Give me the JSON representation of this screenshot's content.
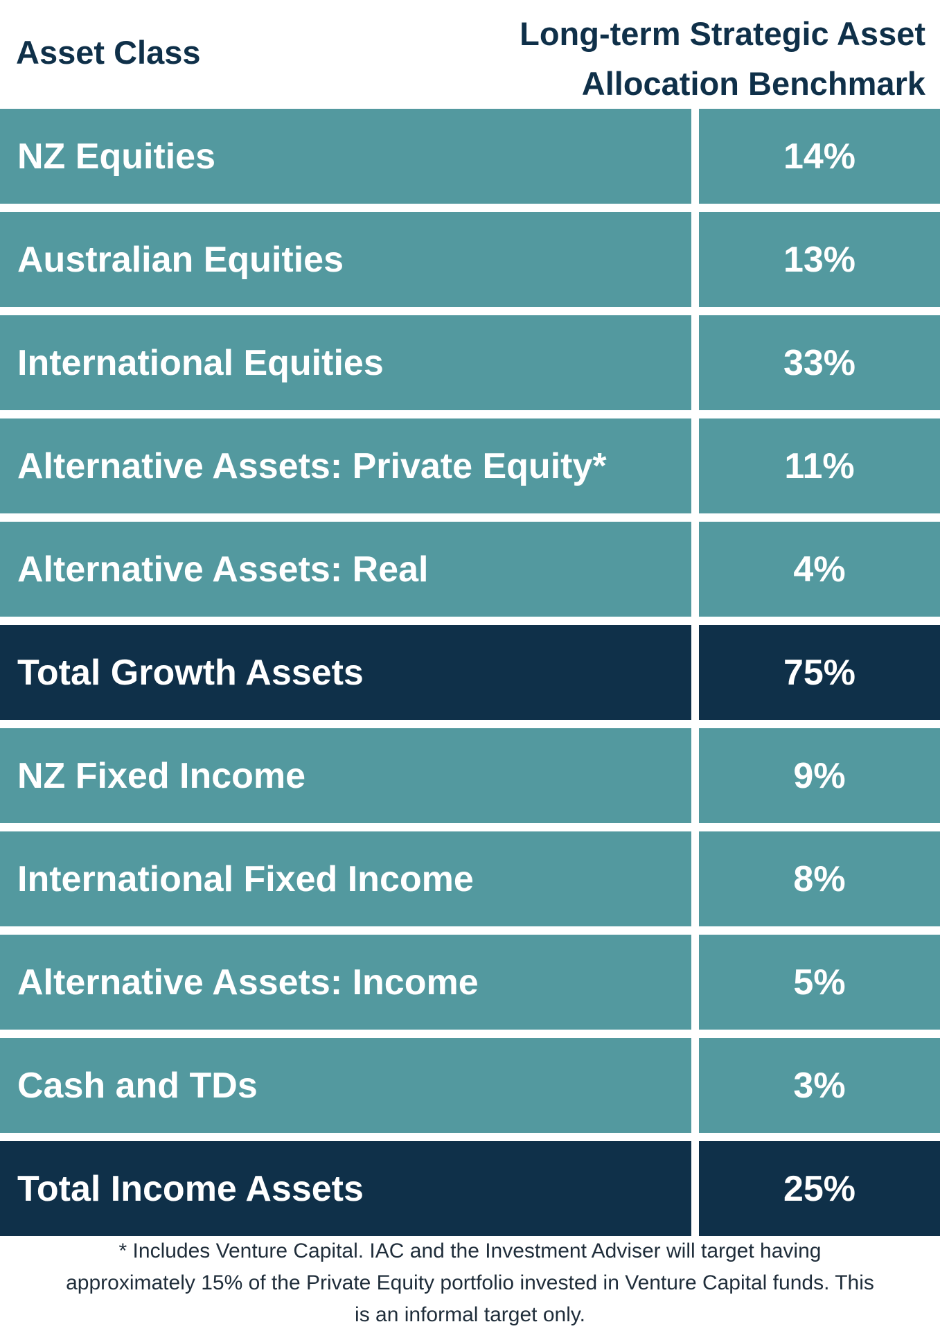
{
  "header": {
    "asset_class_label": "Asset Class",
    "benchmark_label_line1": "Long-term Strategic Asset",
    "benchmark_label_line2": "Allocation Benchmark"
  },
  "rows": [
    {
      "label": "NZ Equities",
      "value": "14%",
      "total": false
    },
    {
      "label": "Australian Equities",
      "value": "13%",
      "total": false
    },
    {
      "label": "International Equities",
      "value": "33%",
      "total": false
    },
    {
      "label": "Alternative Assets: Private Equity*",
      "value": "11%",
      "total": false
    },
    {
      "label": "Alternative Assets: Real",
      "value": "4%",
      "total": false
    },
    {
      "label": "Total Growth Assets",
      "value": "75%",
      "total": true
    },
    {
      "label": "NZ Fixed Income",
      "value": "9%",
      "total": false
    },
    {
      "label": "International Fixed Income",
      "value": "8%",
      "total": false
    },
    {
      "label": "Alternative Assets: Income",
      "value": "5%",
      "total": false
    },
    {
      "label": "Cash and TDs",
      "value": "3%",
      "total": false
    },
    {
      "label": "Total Income Assets",
      "value": "25%",
      "total": true
    }
  ],
  "footnote": {
    "line1": "* Includes Venture Capital. IAC and the Investment Adviser will target having",
    "line2": "approximately 15% of the Private Equity portfolio invested in Venture Capital funds. This",
    "line3": "is an informal target only."
  },
  "colors": {
    "row_fill": "#53999f",
    "total_fill": "#0f3049",
    "header_text": "#0f3049",
    "cell_text": "#ffffff"
  }
}
